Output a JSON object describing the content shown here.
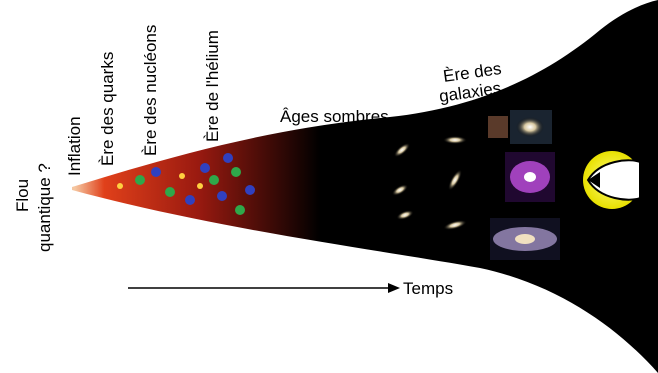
{
  "labels": {
    "quantum": [
      "Flou",
      "quantique ?"
    ],
    "inflation": "Inflation",
    "quarks": "Ère des quarks",
    "nucleons": "Ère des nucléons",
    "helium": "Ère de l'hélium",
    "dark_ages": "Âges sombres",
    "galaxies": [
      "Ère des",
      "galaxies"
    ],
    "time": "Temps"
  }
}
